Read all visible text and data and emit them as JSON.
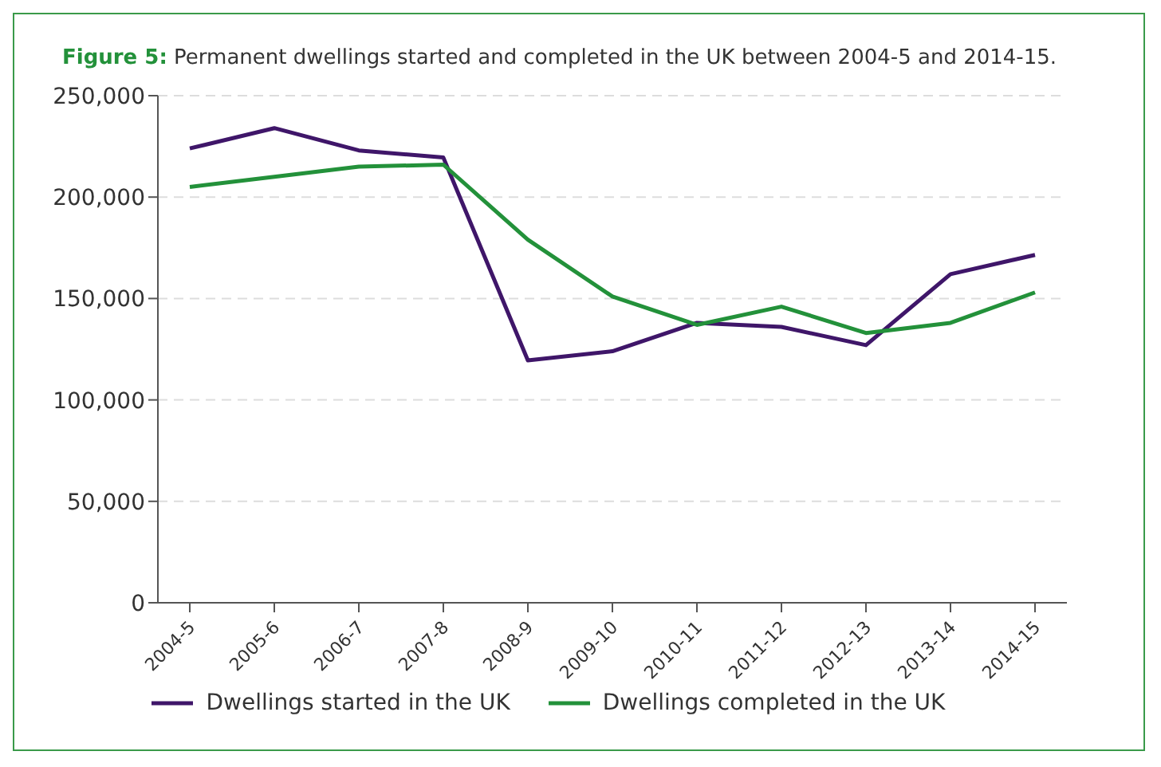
{
  "chart_data": {
    "type": "line",
    "title": "Figure 5: Permanent dwellings started and completed in the UK between 2004-5 and 2014-15.",
    "categories": [
      "2004-5",
      "2005-6",
      "2006-7",
      "2007-8",
      "2008-9",
      "2009-10",
      "2010-11",
      "2011-12",
      "2012-13",
      "2013-14",
      "2014-15"
    ],
    "series": [
      {
        "name": "Dwellings started in the UK",
        "color": "#3f1669",
        "values": [
          224000,
          234000,
          223000,
          219500,
          119500,
          124000,
          138000,
          136000,
          127000,
          162000,
          171500
        ]
      },
      {
        "name": "Dwellings completed in the UK",
        "color": "#23913a",
        "values": [
          205000,
          210000,
          215000,
          216000,
          179000,
          151000,
          137000,
          146000,
          133000,
          138000,
          153000
        ]
      }
    ],
    "ylim": [
      0,
      250000
    ],
    "yticks": [
      0,
      {
        "value": 50000,
        "label": "50,000"
      },
      {
        "value": 100000,
        "label": "100,000"
      },
      {
        "value": 150000,
        "label": "150,000"
      },
      {
        "value": 200000,
        "label": "200,000"
      },
      {
        "value": 250000,
        "label": "250,000"
      }
    ],
    "grid": "y",
    "legend": "bottom",
    "marker": "none",
    "line_style": "solid"
  }
}
